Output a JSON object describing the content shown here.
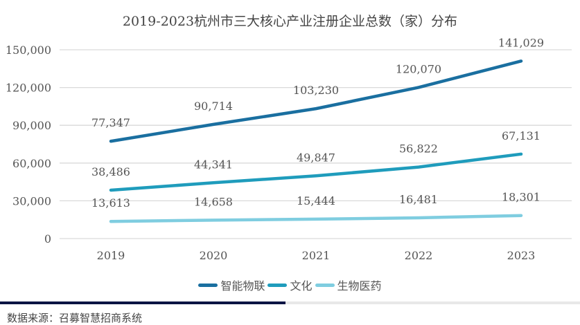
{
  "chart_data": {
    "type": "line",
    "title": "2019-2023杭州市三大核心产业注册企业总数（家）分布",
    "categories": [
      "2019",
      "2020",
      "2021",
      "2022",
      "2023"
    ],
    "ylim": [
      0,
      150000
    ],
    "yticks": [
      0,
      30000,
      60000,
      90000,
      120000,
      150000
    ],
    "ytick_labels": [
      "0",
      "30,000",
      "60,000",
      "90,000",
      "120,000",
      "150,000"
    ],
    "grid": true,
    "legend_position": "bottom",
    "series": [
      {
        "name": "智能物联",
        "color": "#1a6fa0",
        "values": [
          77347,
          90714,
          103230,
          120070,
          141029
        ],
        "labels": [
          "77,347",
          "90,714",
          "103,230",
          "120,070",
          "141,029"
        ]
      },
      {
        "name": "文化",
        "color": "#1f9cbc",
        "values": [
          38486,
          44341,
          49847,
          56822,
          67131
        ],
        "labels": [
          "38,486",
          "44,341",
          "49,847",
          "56,822",
          "67,131"
        ]
      },
      {
        "name": "生物医药",
        "color": "#7fcde0",
        "values": [
          13613,
          14658,
          15444,
          16481,
          18301
        ],
        "labels": [
          "13,613",
          "14,658",
          "15,444",
          "16,481",
          "18,301"
        ]
      }
    ]
  },
  "footer": {
    "source": "数据来源：召募智慧招商系统"
  }
}
